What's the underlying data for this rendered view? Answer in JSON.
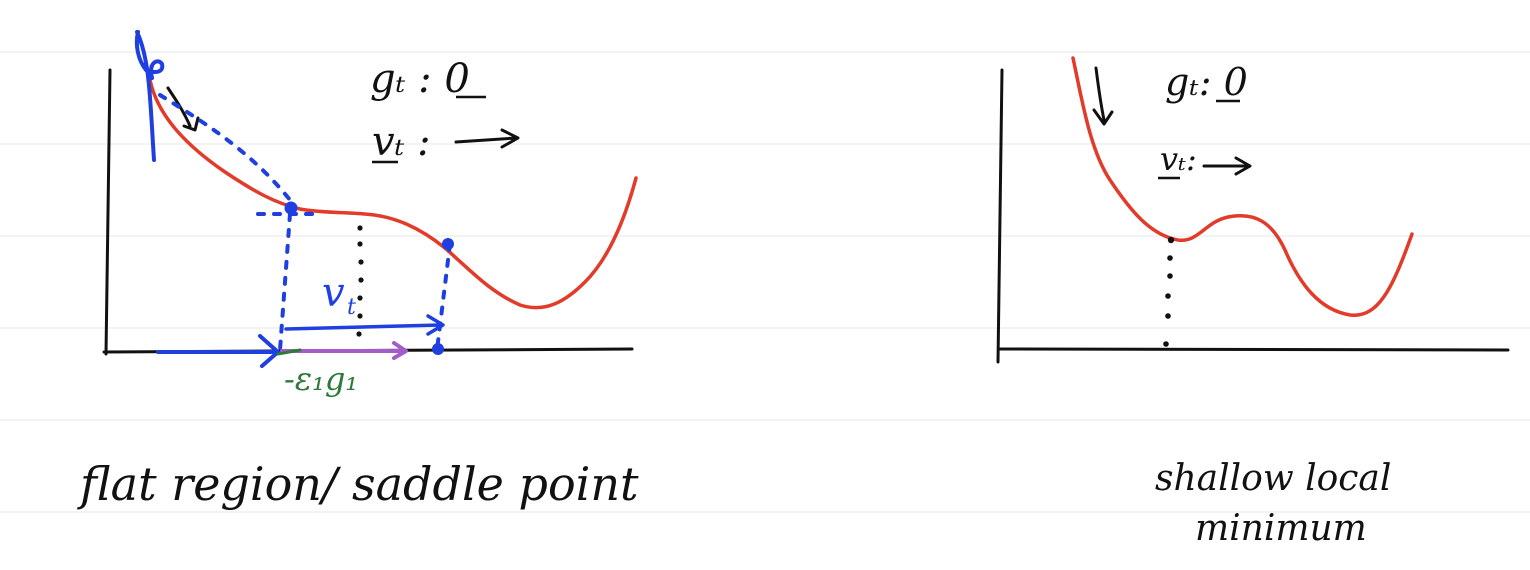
{
  "left_panel": {
    "gradient_label": "gₜ : 0",
    "velocity_label": "vₜ :",
    "v_label": "v",
    "v_subscript": "t",
    "step_label": "-ε₁g₁",
    "caption": "flat region/ saddle point"
  },
  "right_panel": {
    "gradient_label": "gₜ: 0",
    "velocity_label": "vₜ:",
    "caption_line1": "shallow local",
    "caption_line2": "minimum"
  },
  "colors": {
    "curve": "#e23b2a",
    "annotation": "#1f3fe0",
    "step": "#2e7a3a",
    "update": "#a35cc9",
    "axes": "#111111",
    "guide_lines": "#ececec"
  }
}
